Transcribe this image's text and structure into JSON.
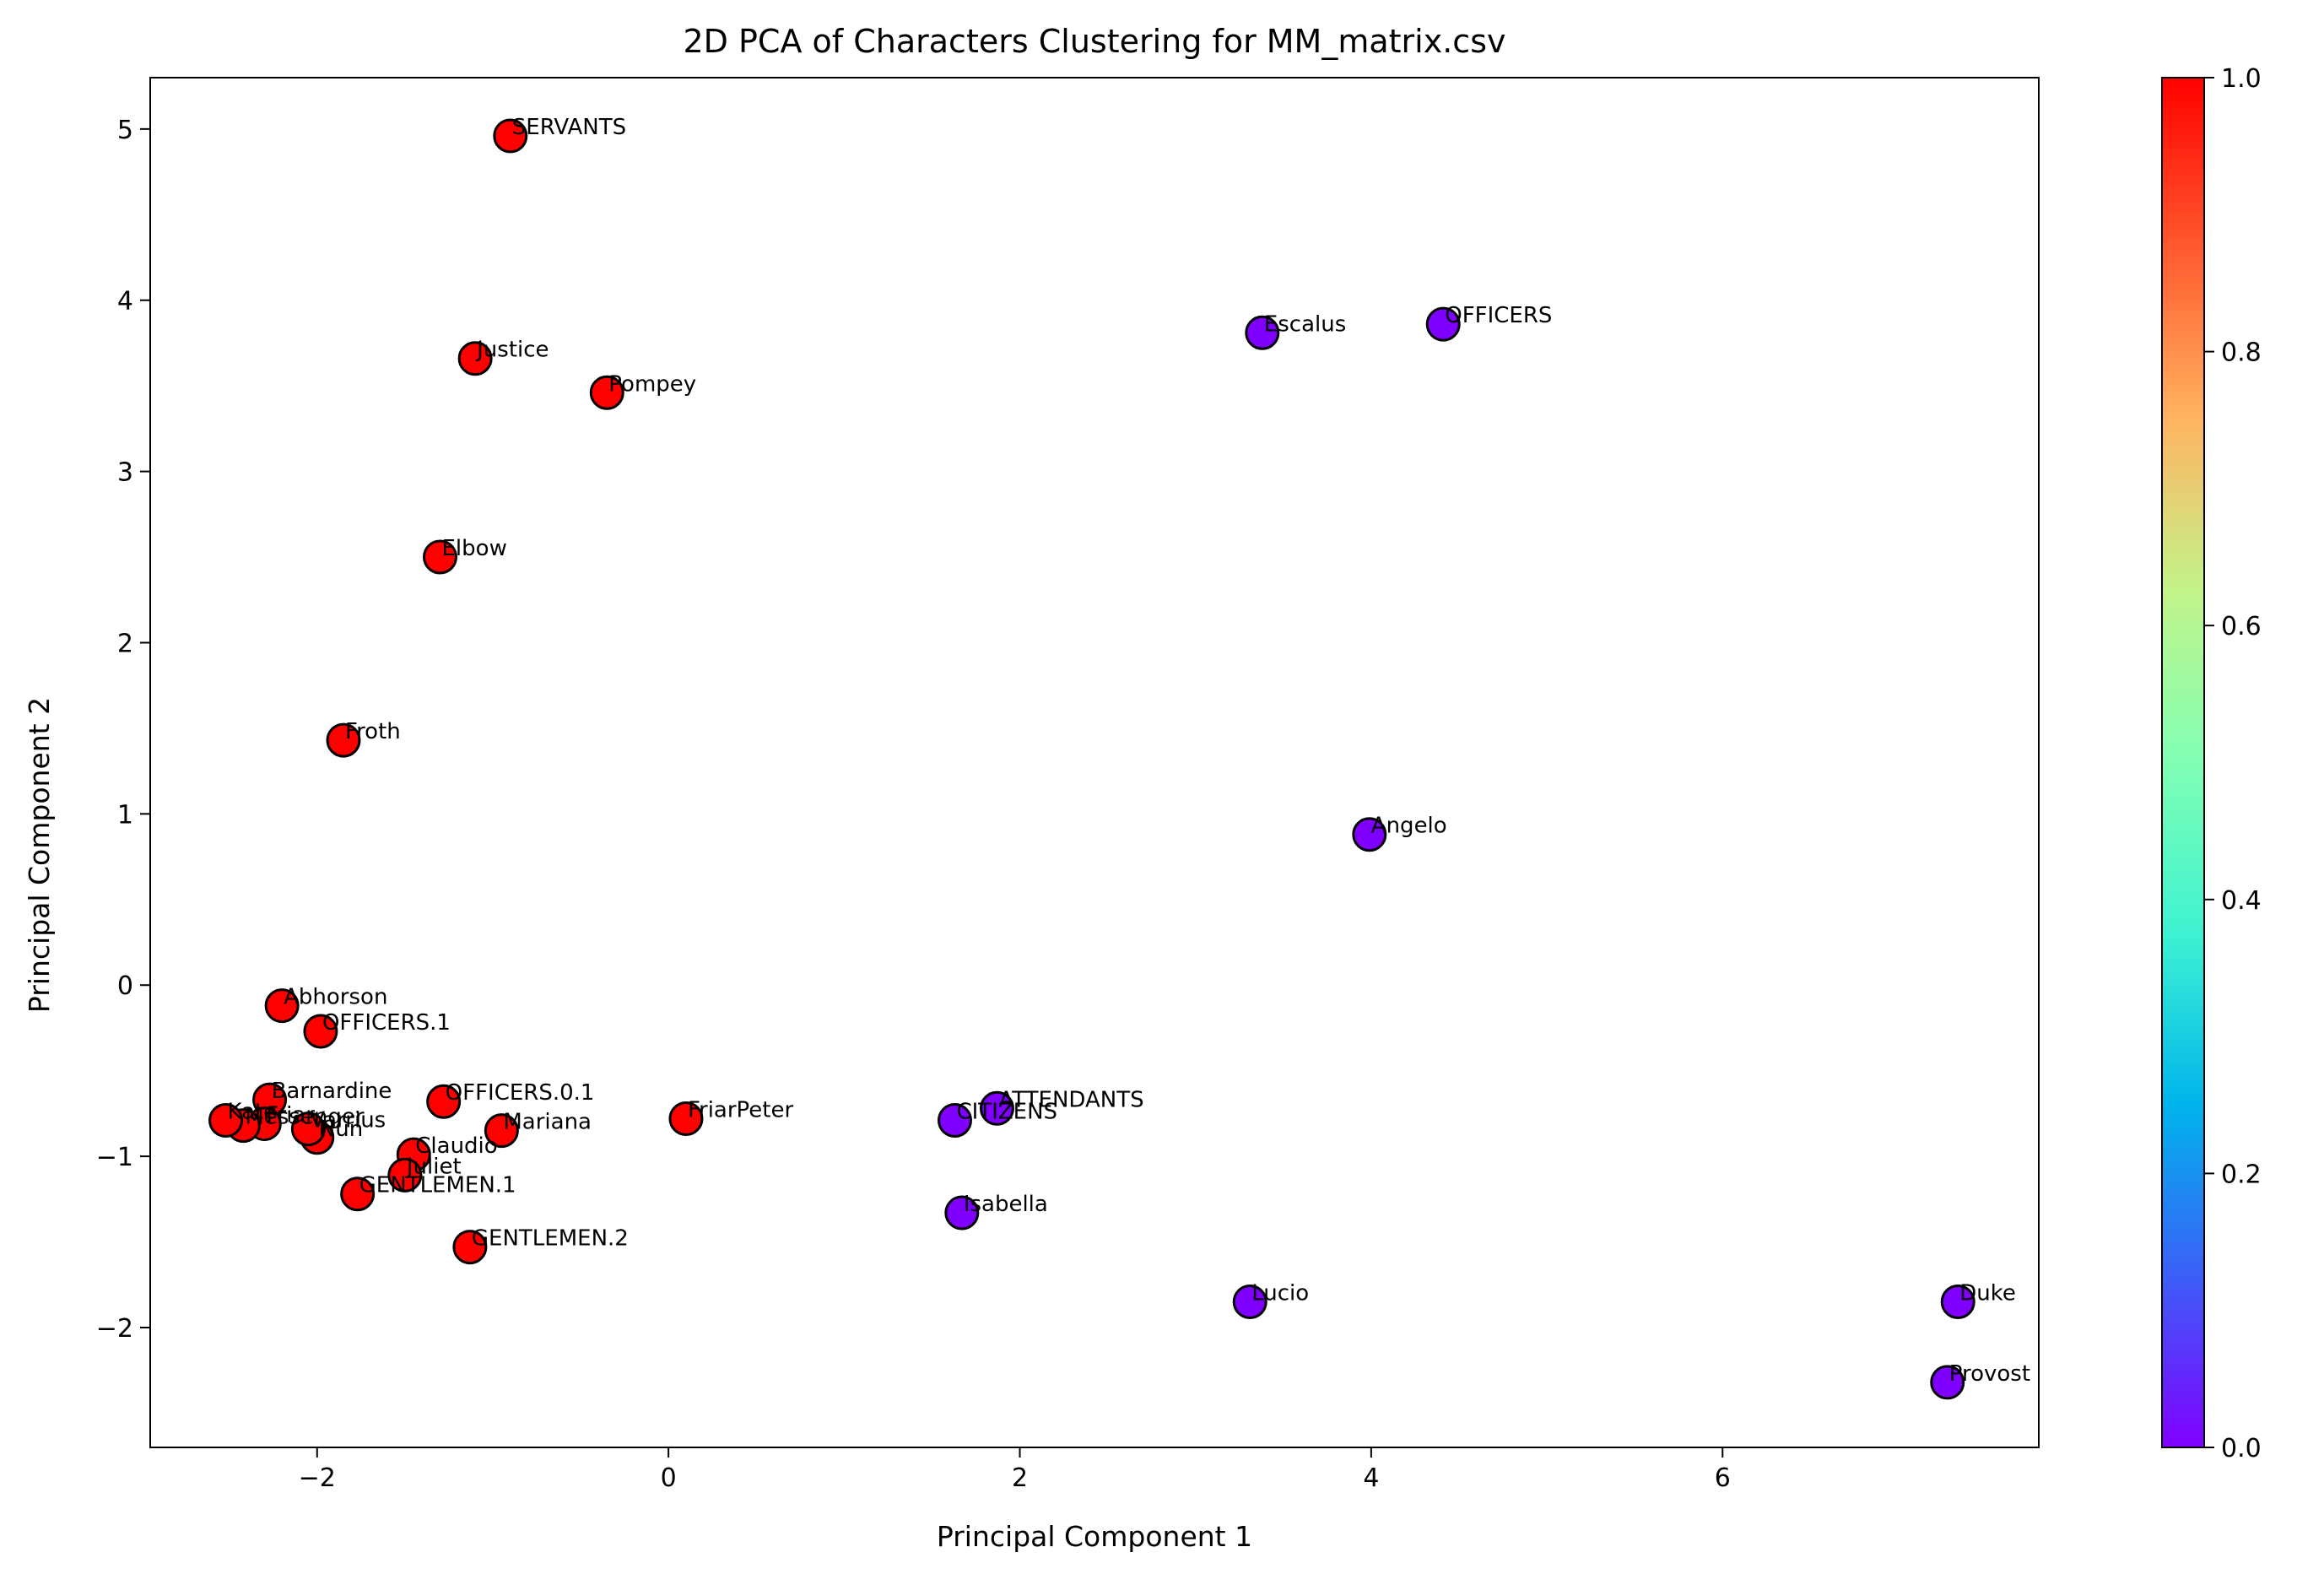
{
  "chart_data": {
    "type": "scatter",
    "title": "2D PCA of Characters Clustering for MM_matrix.csv",
    "xlabel": "Principal Component 1",
    "ylabel": "Principal Component 2",
    "xlim": [
      -2.95,
      7.8
    ],
    "ylim": [
      -2.7,
      5.3
    ],
    "xticks": [
      {
        "value": -2,
        "label": "−2"
      },
      {
        "value": 0,
        "label": "0"
      },
      {
        "value": 2,
        "label": "2"
      },
      {
        "value": 4,
        "label": "4"
      },
      {
        "value": 6,
        "label": "6"
      }
    ],
    "yticks": [
      {
        "value": -2,
        "label": "−2"
      },
      {
        "value": -1,
        "label": "−1"
      },
      {
        "value": 0,
        "label": "0"
      },
      {
        "value": 1,
        "label": "1"
      },
      {
        "value": 2,
        "label": "2"
      },
      {
        "value": 3,
        "label": "3"
      },
      {
        "value": 4,
        "label": "4"
      },
      {
        "value": 5,
        "label": "5"
      }
    ],
    "grid": false,
    "colorbar": {
      "range": [
        0.0,
        1.0
      ],
      "ticks": [
        {
          "value": 0.0,
          "label": "0.0"
        },
        {
          "value": 0.2,
          "label": "0.2"
        },
        {
          "value": 0.4,
          "label": "0.4"
        },
        {
          "value": 0.6,
          "label": "0.6"
        },
        {
          "value": 0.8,
          "label": "0.8"
        },
        {
          "value": 1.0,
          "label": "1.0"
        }
      ],
      "colormap": "rainbow",
      "stops": [
        "#8000ff",
        "#3c5ff7",
        "#00b4ec",
        "#3ef2d2",
        "#80ffb4",
        "#c2f48a",
        "#ffb462",
        "#ff5a2e",
        "#ff0000"
      ]
    },
    "cluster_colors": {
      "0": "#8000ff",
      "1": "#ff0000"
    },
    "points": [
      {
        "label": "SERVANTS",
        "x": -0.9,
        "y": 4.96,
        "cluster": 1
      },
      {
        "label": "Justice",
        "x": -1.1,
        "y": 3.66,
        "cluster": 1
      },
      {
        "label": "Pompey",
        "x": -0.35,
        "y": 3.46,
        "cluster": 1
      },
      {
        "label": "Elbow",
        "x": -1.3,
        "y": 2.5,
        "cluster": 1
      },
      {
        "label": "Froth",
        "x": -1.85,
        "y": 1.43,
        "cluster": 1
      },
      {
        "label": "Abhorson",
        "x": -2.2,
        "y": -0.12,
        "cluster": 1
      },
      {
        "label": "OFFICERS.1",
        "x": -1.98,
        "y": -0.27,
        "cluster": 1
      },
      {
        "label": "Barnardine",
        "x": -2.27,
        "y": -0.67,
        "cluster": 1
      },
      {
        "label": "OFFICERS.0.1",
        "x": -1.28,
        "y": -0.68,
        "cluster": 1
      },
      {
        "label": "FriarPeter",
        "x": 0.1,
        "y": -0.78,
        "cluster": 1
      },
      {
        "label": "Mariana",
        "x": -0.95,
        "y": -0.85,
        "cluster": 1
      },
      {
        "label": "Claudio",
        "x": -1.45,
        "y": -0.99,
        "cluster": 1
      },
      {
        "label": "Juliet",
        "x": -1.5,
        "y": -1.11,
        "cluster": 1
      },
      {
        "label": "GENTLEMEN.1",
        "x": -1.77,
        "y": -1.22,
        "cluster": 1
      },
      {
        "label": "GENTLEMEN.2",
        "x": -1.13,
        "y": -1.53,
        "cluster": 1
      },
      {
        "label": "Nun",
        "x": -2.0,
        "y": -0.89,
        "cluster": 1
      },
      {
        "label": "Varrius",
        "x": -2.05,
        "y": -0.84,
        "cluster": 1
      },
      {
        "label": "Friar",
        "x": -2.3,
        "y": -0.81,
        "cluster": 1
      },
      {
        "label": "Messenger",
        "x": -2.42,
        "y": -0.82,
        "cluster": 1
      },
      {
        "label": "Kate",
        "x": -2.52,
        "y": -0.79,
        "cluster": 1
      },
      {
        "label": "Escalus",
        "x": 3.38,
        "y": 3.81,
        "cluster": 0
      },
      {
        "label": "OFFICERS",
        "x": 4.41,
        "y": 3.86,
        "cluster": 0
      },
      {
        "label": "Angelo",
        "x": 3.99,
        "y": 0.88,
        "cluster": 0
      },
      {
        "label": "ATTENDANTS",
        "x": 1.87,
        "y": -0.72,
        "cluster": 0
      },
      {
        "label": "CITIZENS",
        "x": 1.63,
        "y": -0.79,
        "cluster": 0
      },
      {
        "label": "Isabella",
        "x": 1.67,
        "y": -1.33,
        "cluster": 0
      },
      {
        "label": "Lucio",
        "x": 3.31,
        "y": -1.85,
        "cluster": 0
      },
      {
        "label": "Duke",
        "x": 7.34,
        "y": -1.85,
        "cluster": 0
      },
      {
        "label": "Provost",
        "x": 7.28,
        "y": -2.32,
        "cluster": 0
      }
    ]
  }
}
